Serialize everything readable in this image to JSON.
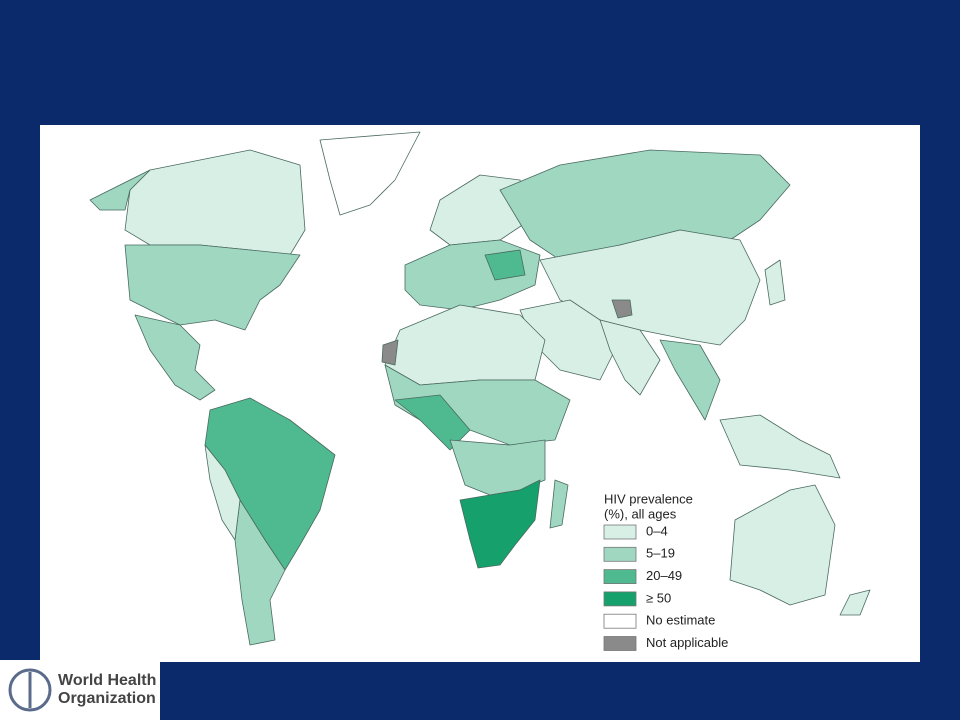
{
  "legend": {
    "title": [
      "HIV prevalence",
      "(%), all ages"
    ],
    "items": [
      {
        "label": "0–4",
        "color": "#d8efe6"
      },
      {
        "label": "5–19",
        "color": "#9fd7c1"
      },
      {
        "label": "20–49",
        "color": "#4fb98f"
      },
      {
        "label": "≥ 50",
        "color": "#16a06b"
      },
      {
        "label": "No estimate",
        "color": "#ffffff"
      },
      {
        "label": "Not applicable",
        "color": "#8a8a8a"
      }
    ]
  },
  "logo": {
    "text": [
      "World Health",
      "Organization"
    ]
  }
}
